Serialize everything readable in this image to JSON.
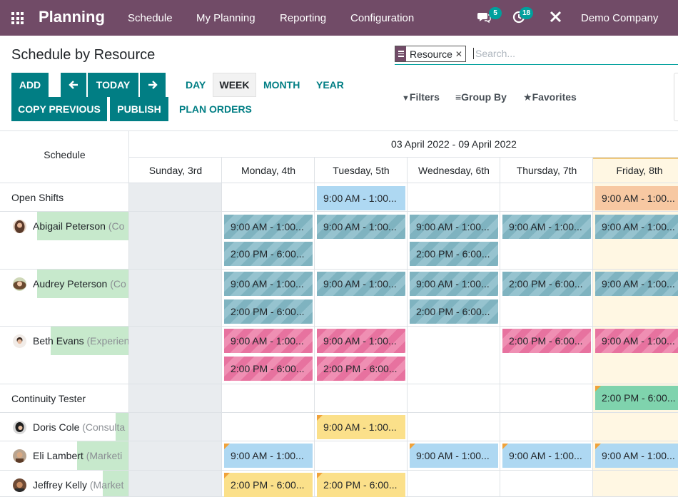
{
  "nav": {
    "brand": "Planning",
    "menu": [
      "Schedule",
      "My Planning",
      "Reporting",
      "Configuration"
    ],
    "chat_badge": "5",
    "activity_badge": "18",
    "company": "Demo Company"
  },
  "control": {
    "title": "Schedule by Resource",
    "facet": "Resource",
    "search_placeholder": "Search...",
    "add": "ADD",
    "today": "TODAY",
    "copy_previous": "COPY PREVIOUS",
    "publish": "PUBLISH",
    "scales": [
      "DAY",
      "WEEK",
      "MONTH",
      "YEAR"
    ],
    "active_scale": "WEEK",
    "plan_orders": "PLAN ORDERS",
    "filters": "Filters",
    "group_by": "Group By",
    "favorites": "Favorites"
  },
  "gantt": {
    "schedule_label": "Schedule",
    "range": "03 April 2022 - 09 April 2022",
    "days": [
      "Sunday, 3rd",
      "Monday, 4th",
      "Tuesday, 5th",
      "Wednesday, 6th",
      "Thursday, 7th",
      "Friday, 8th"
    ],
    "rows": [
      {
        "name": "Open Shifts",
        "role": ""
      },
      {
        "name": "Abigail Peterson",
        "role": "(Co"
      },
      {
        "name": "Audrey Peterson",
        "role": "(Co"
      },
      {
        "name": "Beth Evans",
        "role": "(Experien"
      },
      {
        "name": "Continuity Tester",
        "role": ""
      },
      {
        "name": "Doris Cole",
        "role": "(Consulta"
      },
      {
        "name": "Eli Lambert",
        "role": "(Marketi"
      },
      {
        "name": "Jeffrey Kelly",
        "role": "(Market"
      }
    ],
    "slots": {
      "morning": "9:00 AM - 1:00...",
      "afternoon": "2:00 PM - 6:00..."
    }
  }
}
